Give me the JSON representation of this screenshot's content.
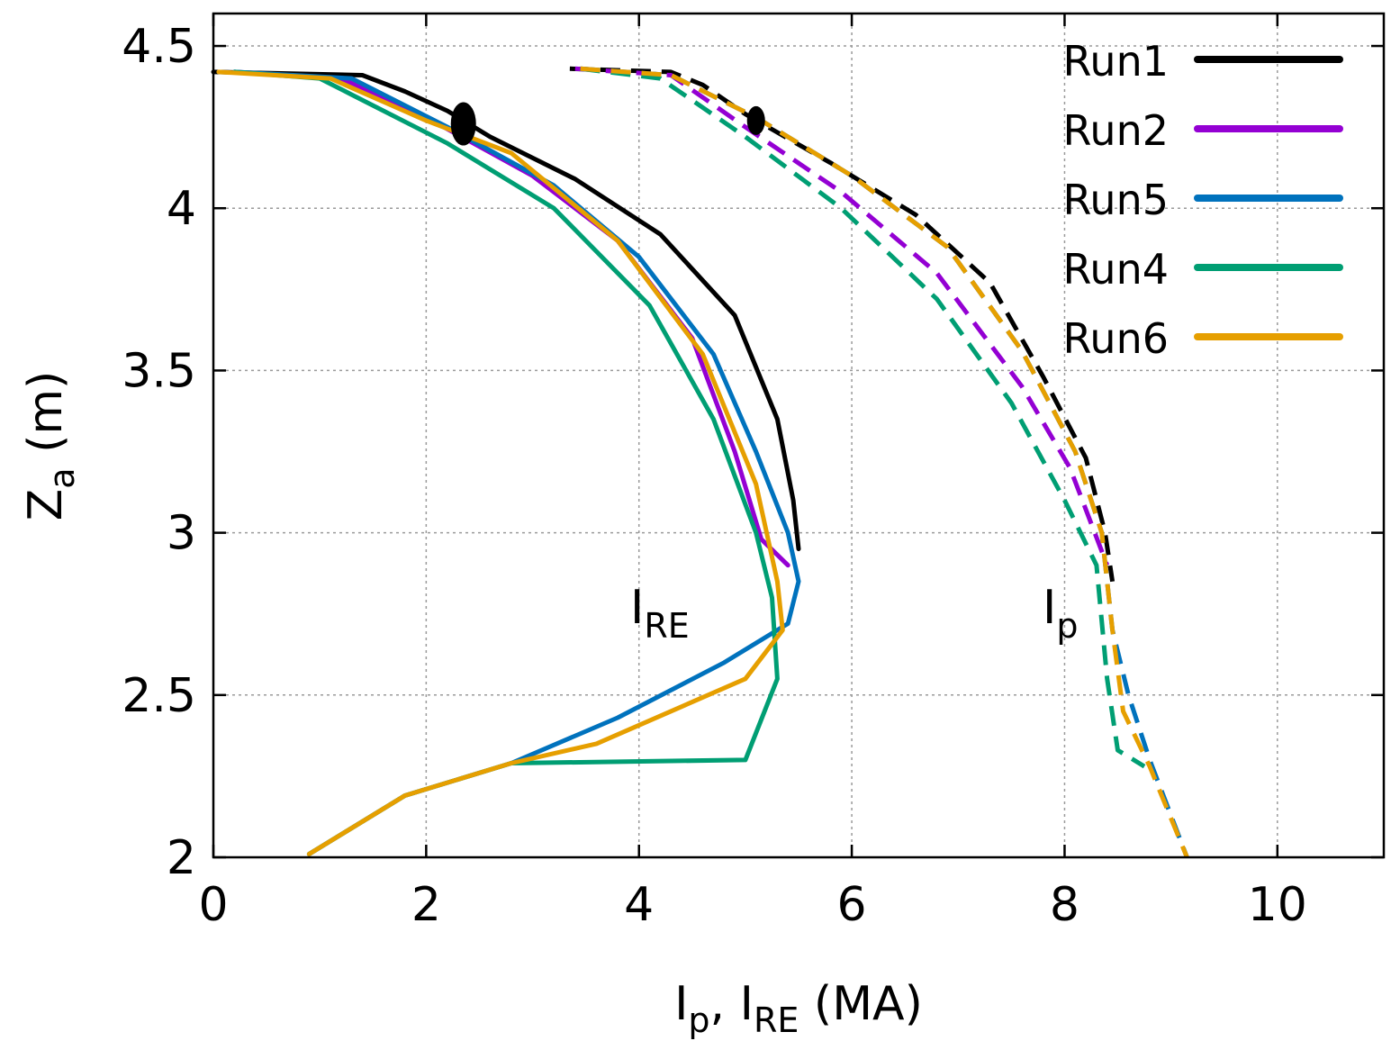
{
  "chart_data": {
    "type": "line",
    "title": "",
    "xlabel": {
      "main": "I",
      "sub1": "p",
      "mid": ", I",
      "sub2": "RE",
      "tail": " (MA)"
    },
    "ylabel": {
      "main": "Z",
      "sub": "a",
      "tail": " (m)"
    },
    "xlim": [
      0,
      11
    ],
    "ylim": [
      2,
      4.6
    ],
    "xticks": [
      0,
      2,
      4,
      6,
      8,
      10
    ],
    "xtick_labels": [
      "0",
      "2",
      "4",
      "6",
      "8",
      "10"
    ],
    "yticks": [
      2,
      2.5,
      3,
      3.5,
      4,
      4.5
    ],
    "ytick_labels": [
      "2",
      "2.5",
      "3",
      "3.5",
      "4",
      "4.5"
    ],
    "grid": true,
    "legend_position": "top-right",
    "annotations": [
      {
        "main": "I",
        "sub": "RE",
        "x": 4.0,
        "y": 2.72
      },
      {
        "main": "I",
        "sub": "p",
        "x": 7.9,
        "y": 2.72
      }
    ],
    "series": [
      {
        "name": "Run1",
        "color": "#000000",
        "I_RE": [
          [
            0,
            4.42
          ],
          [
            1.4,
            4.41
          ],
          [
            1.8,
            4.36
          ],
          [
            2.2,
            4.3
          ],
          [
            2.6,
            4.22
          ],
          [
            3.4,
            4.09
          ],
          [
            4.2,
            3.92
          ],
          [
            4.9,
            3.67
          ],
          [
            5.3,
            3.35
          ],
          [
            5.45,
            3.1
          ],
          [
            5.5,
            2.95
          ]
        ],
        "I_p": [
          [
            3.35,
            4.43
          ],
          [
            4.3,
            4.42
          ],
          [
            4.6,
            4.38
          ],
          [
            5.0,
            4.29
          ],
          [
            5.8,
            4.14
          ],
          [
            6.6,
            3.98
          ],
          [
            7.3,
            3.77
          ],
          [
            7.8,
            3.48
          ],
          [
            8.2,
            3.23
          ],
          [
            8.38,
            3.0
          ],
          [
            8.45,
            2.85
          ]
        ]
      },
      {
        "name": "Run2",
        "color": "#9400d3",
        "I_RE": [
          [
            0.2,
            4.42
          ],
          [
            1.2,
            4.4
          ],
          [
            2.0,
            4.28
          ],
          [
            3.0,
            4.1
          ],
          [
            3.8,
            3.9
          ],
          [
            4.5,
            3.6
          ],
          [
            4.9,
            3.25
          ],
          [
            5.15,
            2.98
          ],
          [
            5.4,
            2.9
          ]
        ],
        "I_p": [
          [
            3.4,
            4.43
          ],
          [
            4.3,
            4.41
          ],
          [
            5.0,
            4.25
          ],
          [
            5.9,
            4.05
          ],
          [
            6.8,
            3.8
          ],
          [
            7.6,
            3.45
          ],
          [
            8.05,
            3.2
          ],
          [
            8.4,
            2.9
          ]
        ]
      },
      {
        "name": "Run5",
        "color": "#0072bd",
        "I_RE": [
          [
            0.2,
            4.42
          ],
          [
            1.3,
            4.4
          ],
          [
            2.2,
            4.25
          ],
          [
            3.2,
            4.07
          ],
          [
            4.0,
            3.85
          ],
          [
            4.7,
            3.55
          ],
          [
            5.1,
            3.25
          ],
          [
            5.4,
            3.0
          ],
          [
            5.5,
            2.85
          ],
          [
            5.4,
            2.72
          ],
          [
            4.8,
            2.6
          ],
          [
            3.8,
            2.43
          ],
          [
            2.8,
            2.29
          ],
          [
            1.8,
            2.19
          ],
          [
            0.9,
            2.01
          ]
        ],
        "I_p": [
          [
            3.45,
            4.43
          ],
          [
            4.3,
            4.41
          ],
          [
            5.1,
            4.28
          ],
          [
            6.0,
            4.1
          ],
          [
            6.9,
            3.88
          ],
          [
            7.6,
            3.56
          ],
          [
            8.1,
            3.25
          ],
          [
            8.35,
            3.0
          ],
          [
            8.45,
            2.7
          ],
          [
            8.6,
            2.5
          ],
          [
            8.8,
            2.3
          ],
          [
            9.15,
            2.0
          ]
        ]
      },
      {
        "name": "Run4",
        "color": "#009e73",
        "I_RE": [
          [
            0.2,
            4.42
          ],
          [
            1.0,
            4.4
          ],
          [
            1.3,
            4.35
          ],
          [
            2.2,
            4.2
          ],
          [
            3.2,
            4.0
          ],
          [
            4.1,
            3.7
          ],
          [
            4.7,
            3.35
          ],
          [
            5.1,
            3.0
          ],
          [
            5.25,
            2.8
          ],
          [
            5.3,
            2.55
          ],
          [
            5.0,
            2.3
          ],
          [
            2.8,
            2.29
          ],
          [
            1.8,
            2.19
          ],
          [
            0.9,
            2.01
          ]
        ],
        "I_p": [
          [
            3.45,
            4.43
          ],
          [
            4.2,
            4.4
          ],
          [
            5.0,
            4.22
          ],
          [
            5.9,
            4.0
          ],
          [
            6.8,
            3.72
          ],
          [
            7.5,
            3.4
          ],
          [
            8.0,
            3.1
          ],
          [
            8.3,
            2.9
          ],
          [
            8.4,
            2.55
          ],
          [
            8.5,
            2.33
          ],
          [
            8.75,
            2.28
          ]
        ]
      },
      {
        "name": "Run6",
        "color": "#e69f00",
        "I_RE": [
          [
            0.05,
            4.42
          ],
          [
            1.1,
            4.4
          ],
          [
            2.0,
            4.27
          ],
          [
            2.8,
            4.17
          ],
          [
            3.8,
            3.9
          ],
          [
            4.6,
            3.55
          ],
          [
            5.1,
            3.15
          ],
          [
            5.3,
            2.85
          ],
          [
            5.35,
            2.7
          ],
          [
            5.0,
            2.55
          ],
          [
            3.6,
            2.35
          ],
          [
            2.8,
            2.29
          ],
          [
            1.8,
            2.19
          ],
          [
            0.9,
            2.01
          ]
        ],
        "I_p": [
          [
            3.45,
            4.43
          ],
          [
            4.3,
            4.41
          ],
          [
            5.1,
            4.28
          ],
          [
            6.0,
            4.1
          ],
          [
            6.9,
            3.88
          ],
          [
            7.6,
            3.56
          ],
          [
            8.1,
            3.25
          ],
          [
            8.35,
            3.0
          ],
          [
            8.45,
            2.7
          ],
          [
            8.55,
            2.45
          ],
          [
            8.8,
            2.28
          ],
          [
            9.15,
            2.0
          ]
        ]
      }
    ]
  }
}
